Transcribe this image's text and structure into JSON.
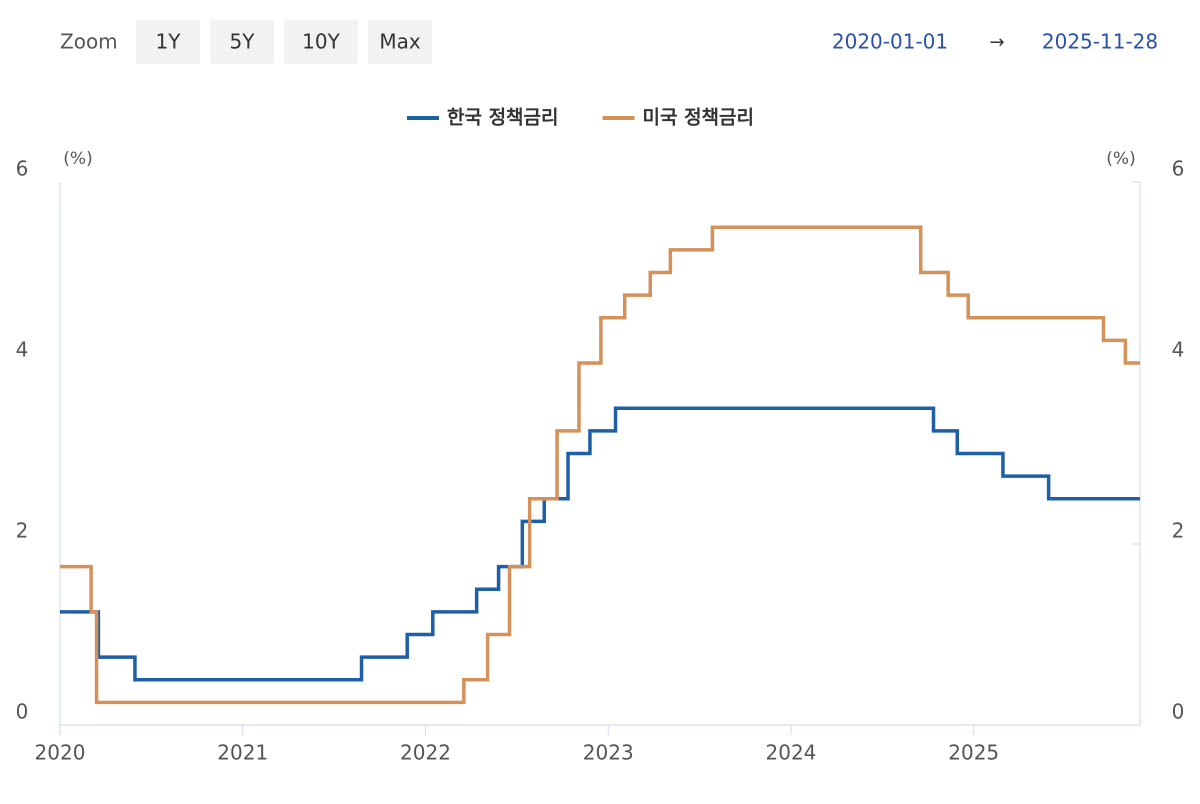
{
  "controls": {
    "zoom_label": "Zoom",
    "zoom_buttons": [
      "1Y",
      "5Y",
      "10Y",
      "Max"
    ],
    "range_start": "2020-01-01",
    "range_arrow": "→",
    "range_end": "2025-11-28"
  },
  "chart_data": {
    "type": "step-line",
    "y_unit": "(%)",
    "y2_unit": "(%)",
    "xlim": [
      2020,
      2025.91
    ],
    "xticks": [
      2020,
      2021,
      2022,
      2023,
      2024,
      2025
    ],
    "ylim": [
      0,
      6
    ],
    "yticks": [
      0,
      2,
      4,
      6
    ],
    "y2lim": [
      0,
      6
    ],
    "y2ticks": [
      0,
      2,
      4,
      6
    ],
    "legend": "top",
    "series": [
      {
        "name": "한국 정책금리",
        "color": "#1f5fa8",
        "x": [
          2020,
          2020.21,
          2020.41,
          2021.65,
          2021.9,
          2022.04,
          2022.28,
          2022.4,
          2022.53,
          2022.65,
          2022.78,
          2022.9,
          2023.04,
          2024.78,
          2024.91,
          2025.16,
          2025.41,
          2025.91
        ],
        "values": [
          1.25,
          0.75,
          0.5,
          0.75,
          1.0,
          1.25,
          1.5,
          1.75,
          2.25,
          2.5,
          3.0,
          3.25,
          3.5,
          3.25,
          3.0,
          2.75,
          2.5,
          2.5
        ]
      },
      {
        "name": "미국 정책금리",
        "color": "#d4915a",
        "x": [
          2020,
          2020.17,
          2020.2,
          2022.21,
          2022.34,
          2022.46,
          2022.57,
          2022.72,
          2022.84,
          2022.96,
          2023.09,
          2023.23,
          2023.34,
          2023.57,
          2024.71,
          2024.86,
          2024.97,
          2025.71,
          2025.83,
          2025.91
        ],
        "values": [
          1.75,
          1.25,
          0.25,
          0.5,
          1.0,
          1.75,
          2.5,
          3.25,
          4.0,
          4.5,
          4.75,
          5.0,
          5.25,
          5.5,
          5.0,
          4.75,
          4.5,
          4.25,
          4.0,
          4.0
        ]
      }
    ]
  }
}
